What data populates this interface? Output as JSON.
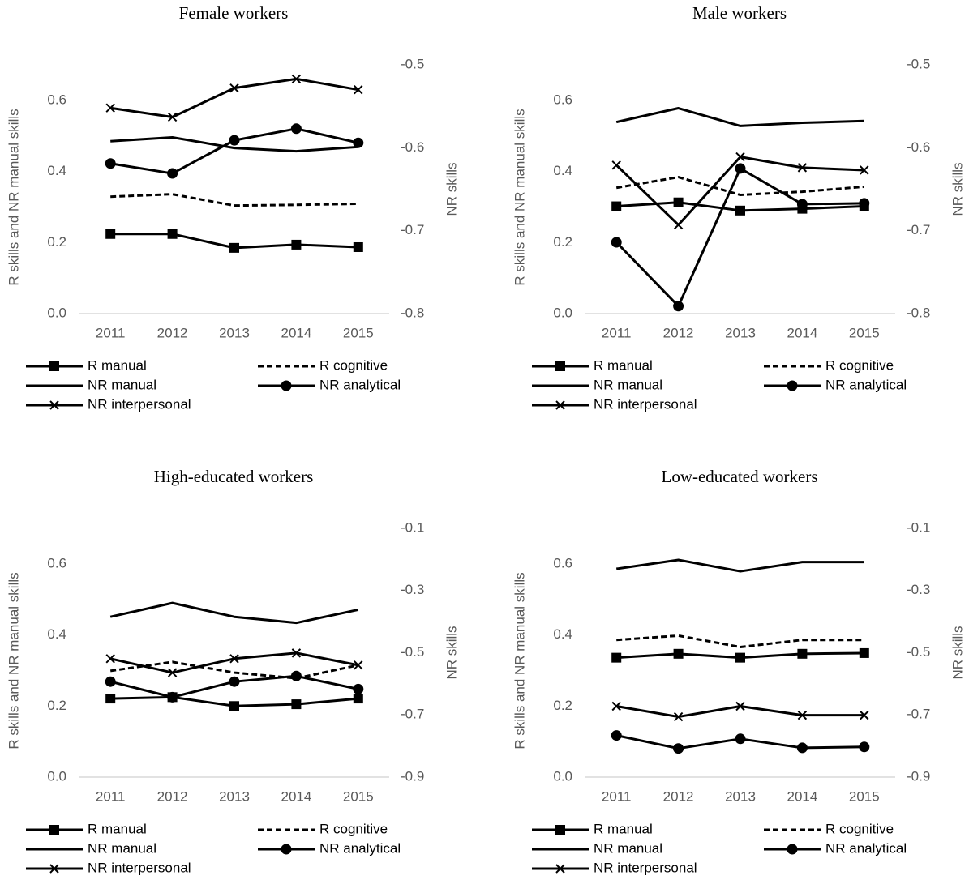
{
  "chart_data": [
    {
      "type": "line",
      "title": "Female workers",
      "y_label": "R skills and NR manual skills",
      "y2_label": "NR skills",
      "categories": [
        "2011",
        "2012",
        "2013",
        "2014",
        "2015"
      ],
      "ylim": [
        0,
        0.7
      ],
      "yticks": [
        {
          "value": 0,
          "label": "0.0"
        },
        0.2,
        0.4,
        0.6
      ],
      "y2lim": [
        -0.8,
        -0.5
      ],
      "y2ticks": [
        -0.8,
        -0.7,
        -0.6,
        -0.5
      ],
      "series": [
        {
          "name": "R manual",
          "color": "#000000",
          "marker": "square",
          "dash": false,
          "values": [
            0.224,
            0.224,
            0.185,
            0.194,
            0.187
          ]
        },
        {
          "name": "R cognitive",
          "color": "#000000",
          "marker": "none",
          "dash": true,
          "values": [
            0.329,
            0.336,
            0.304,
            0.306,
            0.309
          ]
        },
        {
          "name": "NR manual",
          "color": "#000000",
          "marker": "none",
          "dash": false,
          "values": [
            0.485,
            0.496,
            0.466,
            0.457,
            0.469
          ]
        },
        {
          "name": "NR analytical",
          "color": "#000000",
          "marker": "circle",
          "dash": false,
          "axis": "y2",
          "values": [
            -0.619,
            -0.631,
            -0.591,
            -0.577,
            -0.594
          ]
        },
        {
          "name": "NR interpersonal",
          "color": "#000000",
          "marker": "x",
          "dash": false,
          "axis": "y2",
          "values": [
            -0.552,
            -0.563,
            -0.528,
            -0.517,
            -0.53
          ]
        }
      ]
    },
    {
      "type": "line",
      "title": "Male workers",
      "y_label": "R skills and NR manual skills",
      "y2_label": "NR skills",
      "categories": [
        "2011",
        "2012",
        "2013",
        "2014",
        "2015"
      ],
      "ylim": [
        0,
        0.7
      ],
      "yticks": [
        {
          "value": 0,
          "label": "0.0"
        },
        0.2,
        0.4,
        0.6
      ],
      "y2lim": [
        -0.8,
        -0.5
      ],
      "y2ticks": [
        -0.8,
        -0.7,
        -0.6,
        -0.5
      ],
      "series": [
        {
          "name": "R manual",
          "color": "#000000",
          "marker": "square",
          "dash": false,
          "values": [
            0.302,
            0.313,
            0.29,
            0.295,
            0.302
          ]
        },
        {
          "name": "R cognitive",
          "color": "#000000",
          "marker": "none",
          "dash": true,
          "values": [
            0.354,
            0.384,
            0.334,
            0.343,
            0.357
          ]
        },
        {
          "name": "NR manual",
          "color": "#000000",
          "marker": "none",
          "dash": false,
          "values": [
            0.539,
            0.578,
            0.528,
            0.537,
            0.542
          ]
        },
        {
          "name": "NR analytical",
          "color": "#000000",
          "marker": "circle",
          "dash": false,
          "axis": "y2",
          "values": [
            -0.714,
            -0.791,
            -0.625,
            -0.668,
            -0.667
          ]
        },
        {
          "name": "NR interpersonal",
          "color": "#000000",
          "marker": "x",
          "dash": false,
          "axis": "y2",
          "values": [
            -0.621,
            -0.693,
            -0.611,
            -0.624,
            -0.627
          ]
        }
      ]
    },
    {
      "type": "line",
      "title": "High-educated workers",
      "y_label": "R skills and NR manual skills",
      "y2_label": "NR skills",
      "categories": [
        "2011",
        "2012",
        "2013",
        "2014",
        "2015"
      ],
      "ylim": [
        0,
        0.7
      ],
      "yticks": [
        {
          "value": 0,
          "label": "0.0"
        },
        0.2,
        0.4,
        0.6
      ],
      "y2lim": [
        -0.9,
        -0.1
      ],
      "y2ticks": [
        -0.9,
        -0.7,
        -0.5,
        -0.3,
        -0.1
      ],
      "series": [
        {
          "name": "R manual",
          "color": "#000000",
          "marker": "square",
          "dash": false,
          "values": [
            0.221,
            0.225,
            0.2,
            0.205,
            0.221
          ]
        },
        {
          "name": "R cognitive",
          "color": "#000000",
          "marker": "none",
          "dash": true,
          "values": [
            0.299,
            0.324,
            0.294,
            0.278,
            0.315
          ]
        },
        {
          "name": "NR manual",
          "color": "#000000",
          "marker": "none",
          "dash": false,
          "values": [
            0.451,
            0.49,
            0.451,
            0.434,
            0.471
          ]
        },
        {
          "name": "NR analytical",
          "color": "#000000",
          "marker": "circle",
          "dash": false,
          "axis": "y2",
          "values": [
            -0.593,
            -0.643,
            -0.593,
            -0.575,
            -0.617
          ]
        },
        {
          "name": "NR interpersonal",
          "color": "#000000",
          "marker": "x",
          "dash": false,
          "axis": "y2",
          "values": [
            -0.519,
            -0.564,
            -0.519,
            -0.501,
            -0.54
          ]
        }
      ]
    },
    {
      "type": "line",
      "title": "Low-educated workers",
      "y_label": "R skills and NR manual skills",
      "y2_label": "NR skills",
      "categories": [
        "2011",
        "2012",
        "2013",
        "2014",
        "2015"
      ],
      "ylim": [
        0,
        0.7
      ],
      "yticks": [
        {
          "value": 0,
          "label": "0.0"
        },
        0.2,
        0.4,
        0.6
      ],
      "y2lim": [
        -0.9,
        -0.1
      ],
      "y2ticks": [
        -0.9,
        -0.7,
        -0.5,
        -0.3,
        -0.1
      ],
      "series": [
        {
          "name": "R manual",
          "color": "#000000",
          "marker": "square",
          "dash": false,
          "values": [
            0.336,
            0.347,
            0.336,
            0.347,
            0.349
          ]
        },
        {
          "name": "R cognitive",
          "color": "#000000",
          "marker": "none",
          "dash": true,
          "values": [
            0.386,
            0.398,
            0.366,
            0.386,
            0.386
          ]
        },
        {
          "name": "NR manual",
          "color": "#000000",
          "marker": "none",
          "dash": false,
          "values": [
            0.586,
            0.611,
            0.579,
            0.605,
            0.605
          ]
        },
        {
          "name": "NR analytical",
          "color": "#000000",
          "marker": "circle",
          "dash": false,
          "axis": "y2",
          "values": [
            -0.766,
            -0.808,
            -0.777,
            -0.806,
            -0.803
          ]
        },
        {
          "name": "NR interpersonal",
          "color": "#000000",
          "marker": "x",
          "dash": false,
          "axis": "y2",
          "values": [
            -0.672,
            -0.706,
            -0.672,
            -0.701,
            -0.701
          ]
        }
      ]
    }
  ]
}
